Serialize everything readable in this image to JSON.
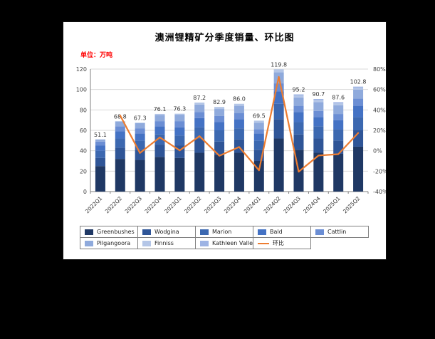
{
  "chart_data": {
    "type": "stacked-bar-line",
    "title": "澳洲锂精矿分季度销量、环比图",
    "unit_label": "单位：万吨",
    "categories": [
      "2022Q1",
      "2022Q2",
      "2022Q3",
      "2022Q4",
      "2023Q1",
      "2023Q2",
      "2023Q3",
      "2023Q4",
      "2024Q1",
      "2024Q2",
      "2024Q3",
      "2024Q4",
      "2025Q1",
      "2025Q2"
    ],
    "totals": [
      51.1,
      68.8,
      67.3,
      76.1,
      76.3,
      87.2,
      82.9,
      86.0,
      69.5,
      119.8,
      95.2,
      90.7,
      87.6,
      102.8
    ],
    "total_labels": [
      "51.1",
      "68.8",
      "67.3",
      "76.1",
      "76.3",
      "87.2",
      "82.9",
      "86.0",
      "69.5",
      "119.8",
      "95.2",
      "90.7",
      "87.6",
      "102.8"
    ],
    "series": [
      {
        "name": "Greenbushes",
        "color": "#1f3864",
        "values": [
          25,
          32,
          31,
          34,
          33,
          38,
          36,
          38,
          30,
          52,
          41,
          38,
          37,
          44
        ]
      },
      {
        "name": "Wodgina",
        "color": "#2f5597",
        "values": [
          8,
          11,
          10,
          12,
          12,
          14,
          13,
          13,
          11,
          19,
          15,
          14,
          13,
          16
        ]
      },
      {
        "name": "Marion",
        "color": "#3c68b0",
        "values": [
          7,
          9,
          9,
          10,
          10,
          11,
          11,
          11,
          9,
          15,
          12,
          12,
          11,
          13
        ]
      },
      {
        "name": "Bald",
        "color": "#4472c4",
        "values": [
          5,
          7,
          7,
          8,
          8,
          9,
          8,
          9,
          7,
          12,
          10,
          9,
          9,
          11
        ]
      },
      {
        "name": "Cattlin",
        "color": "#6b8ed4",
        "values": [
          4,
          5,
          5,
          5,
          6,
          6,
          6,
          6,
          4,
          8,
          6,
          6,
          6,
          7
        ]
      },
      {
        "name": "Pilgangoora",
        "color": "#8faadc",
        "values": [
          2.1,
          4.8,
          5.3,
          6.1,
          6.3,
          7.2,
          6.9,
          7,
          6.5,
          10.8,
          8.2,
          8.7,
          8.6,
          8.8
        ]
      },
      {
        "name": "Finniss",
        "color": "#b4c6e7",
        "values": [
          0,
          0,
          0,
          1,
          1,
          2,
          2,
          2,
          2,
          3,
          2,
          2,
          2,
          2
        ]
      },
      {
        "name": "Kathleen Valley",
        "color": "#9db3e4",
        "values": [
          0,
          0,
          0,
          0,
          0,
          0,
          0,
          0,
          0,
          0,
          1,
          1,
          1,
          1
        ]
      }
    ],
    "line_series": {
      "name": "环比",
      "color": "#ed7d31",
      "values": [
        null,
        34.6,
        -2.2,
        13.1,
        0.3,
        14.3,
        -4.9,
        3.7,
        -19.2,
        72.4,
        -20.5,
        -4.7,
        -3.4,
        17.4
      ]
    },
    "left_axis": {
      "min": 0,
      "max": 120,
      "step": 20,
      "tick_labels": [
        "0",
        "20",
        "40",
        "60",
        "80",
        "100",
        "120"
      ]
    },
    "right_axis": {
      "min": -40,
      "max": 80,
      "step": 20,
      "tick_labels": [
        "-40%",
        "-20%",
        "0%",
        "20%",
        "40%",
        "60%",
        "80%"
      ]
    },
    "grid": true,
    "legend_position": "bottom"
  }
}
